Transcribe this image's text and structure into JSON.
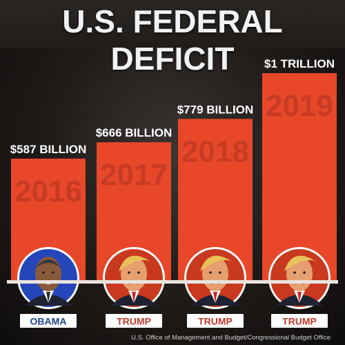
{
  "title": "U.S. FEDERAL DEFICIT",
  "source": "U.S. Office of Management and Budget/Congressional Budget Office",
  "colors": {
    "bar": "#e8472a",
    "year_text": "#c23a22",
    "label_text": "#ffffff",
    "badge_bg": "#ffffff",
    "badge_text_obama": "#1e3f8f",
    "badge_text_trump": "#c0392b",
    "portrait_obama_bg": "#2446b8",
    "portrait_trump_bg": "#c8391f"
  },
  "chart_data": {
    "type": "bar",
    "title": "U.S. FEDERAL DEFICIT",
    "categories": [
      "2016",
      "2017",
      "2018",
      "2019"
    ],
    "values": [
      587,
      666,
      779,
      1000
    ],
    "value_labels": [
      "$587 BILLION",
      "$666 BILLION",
      "$779 BILLION",
      "$1 TRILLION"
    ],
    "unit": "billion USD",
    "president_labels": [
      "OBAMA",
      "TRUMP",
      "TRUMP",
      "TRUMP"
    ],
    "xlabel": "",
    "ylabel": "",
    "grid": false,
    "legend": "none"
  }
}
